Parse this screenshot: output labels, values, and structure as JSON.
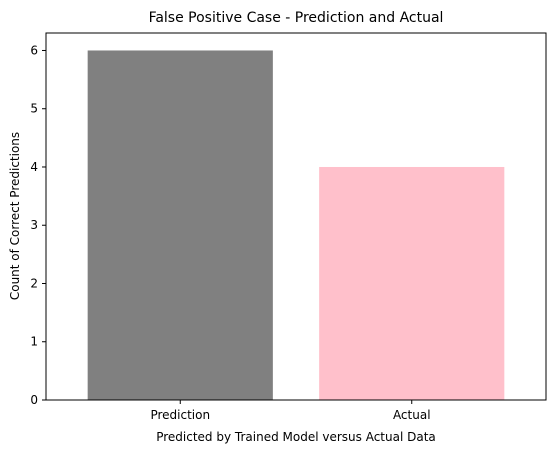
{
  "chart_data": {
    "type": "bar",
    "title": "False Positive Case - Prediction and Actual",
    "xlabel": "Predicted by Trained Model versus Actual Data",
    "ylabel": "Count of Correct Predictions",
    "categories": [
      "Prediction",
      "Actual"
    ],
    "values": [
      6,
      4
    ],
    "colors": [
      "#808080",
      "#ffc0cb"
    ],
    "ylim": [
      0,
      6.3
    ],
    "yticks": [
      0,
      1,
      2,
      3,
      4,
      5,
      6
    ],
    "grid": false,
    "legend": false
  }
}
